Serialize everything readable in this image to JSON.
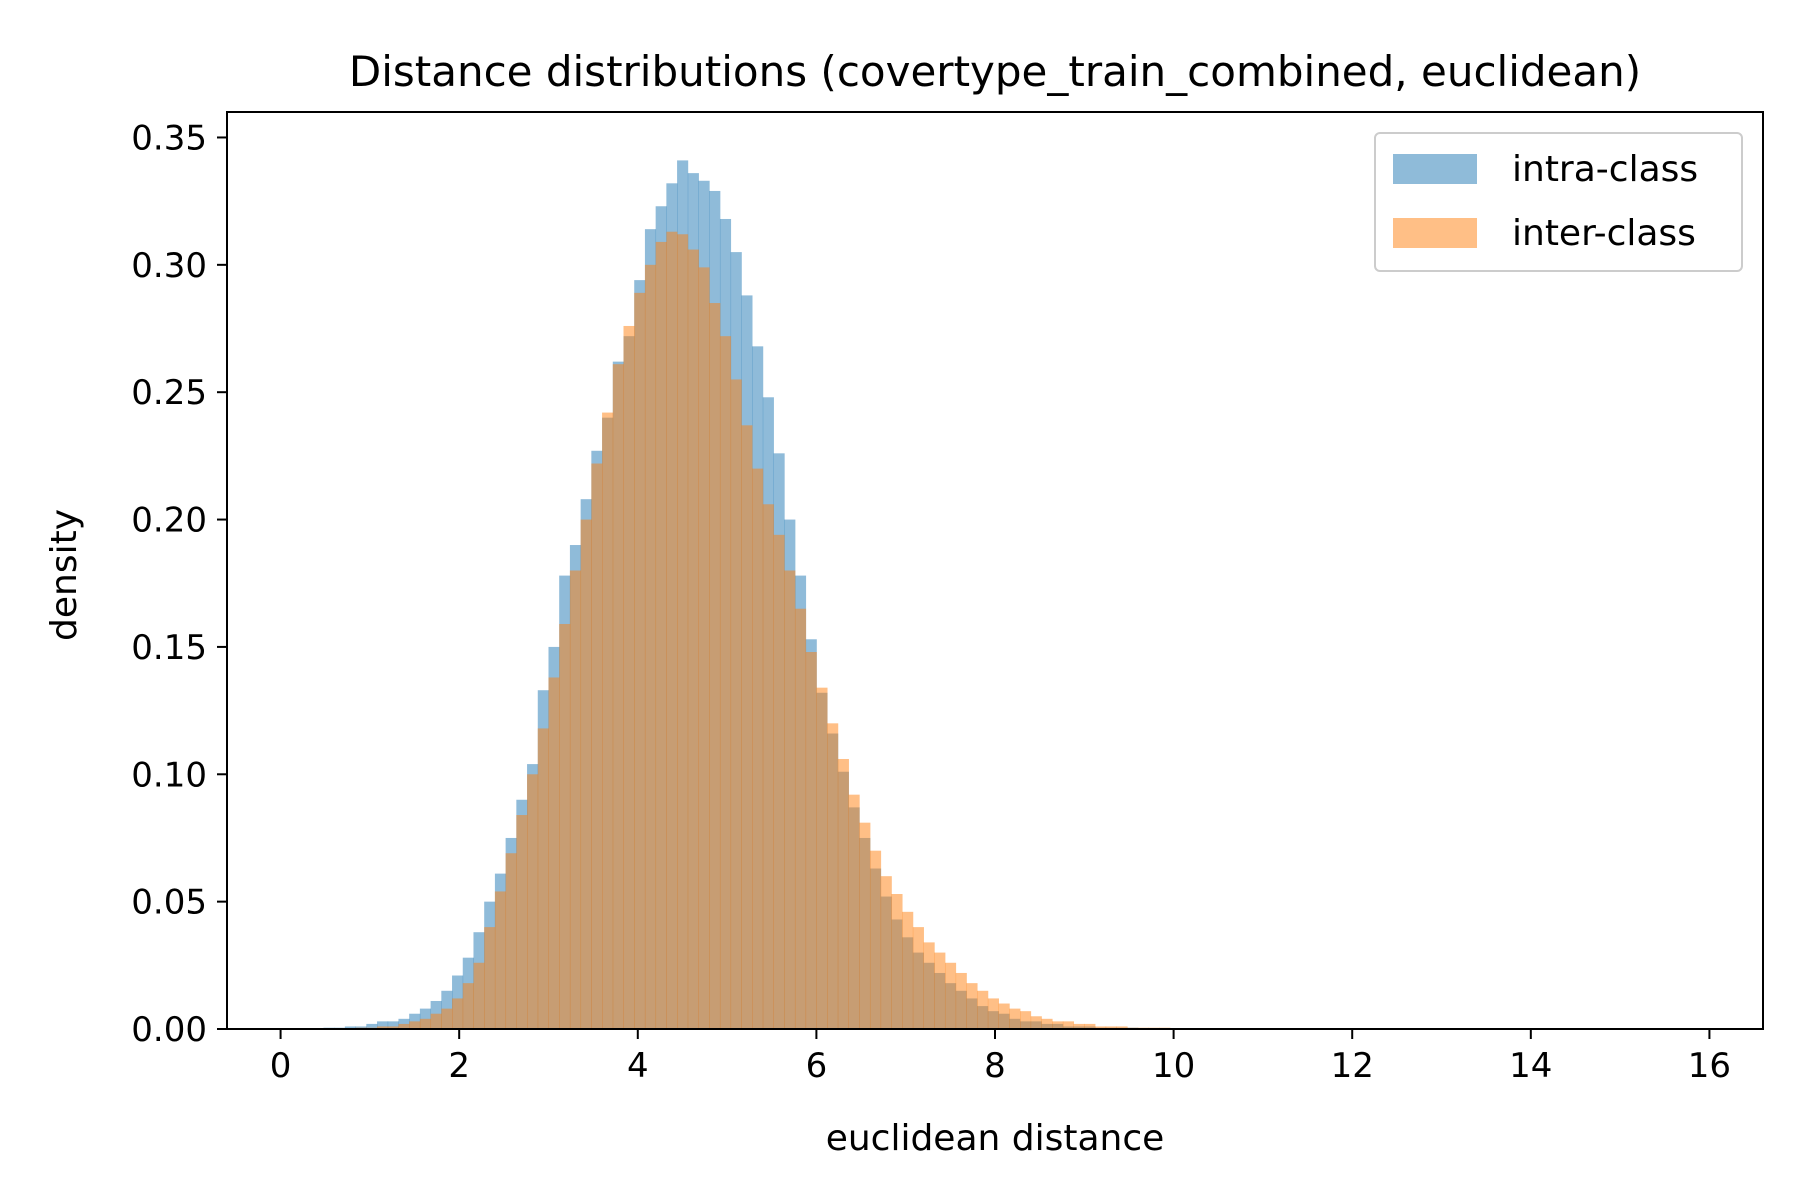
{
  "chart_data": {
    "type": "histogram",
    "title": "Distance distributions (covertype_train_combined, euclidean)",
    "xlabel": "euclidean distance",
    "ylabel": "density",
    "xlim": [
      -0.6,
      16.6
    ],
    "ylim": [
      0,
      0.36
    ],
    "xticks": [
      0,
      2,
      4,
      6,
      8,
      10,
      12,
      14,
      16
    ],
    "xtick_labels": [
      "0",
      "2",
      "4",
      "6",
      "8",
      "10",
      "12",
      "14",
      "16"
    ],
    "yticks": [
      0,
      0.05,
      0.1,
      0.15,
      0.2,
      0.25,
      0.3,
      0.35
    ],
    "ytick_labels": [
      "0.00",
      "0.05",
      "0.10",
      "0.15",
      "0.20",
      "0.25",
      "0.30",
      "0.35"
    ],
    "bin_start": 0,
    "bin_width": 0.12,
    "grid": false,
    "legend_position": "top-right",
    "series": [
      {
        "name": "intra-class",
        "color": "#1f77b4",
        "alpha": 0.5,
        "values": [
          0,
          0,
          0,
          0,
          0.0005,
          0.0005,
          0.001,
          0.001,
          0.002,
          0.003,
          0.003,
          0.004,
          0.006,
          0.008,
          0.011,
          0.015,
          0.021,
          0.028,
          0.038,
          0.05,
          0.061,
          0.075,
          0.09,
          0.104,
          0.133,
          0.15,
          0.178,
          0.19,
          0.208,
          0.227,
          0.24,
          0.262,
          0.272,
          0.294,
          0.314,
          0.323,
          0.332,
          0.341,
          0.336,
          0.333,
          0.329,
          0.318,
          0.305,
          0.288,
          0.268,
          0.248,
          0.226,
          0.2,
          0.178,
          0.153,
          0.132,
          0.116,
          0.101,
          0.087,
          0.075,
          0.063,
          0.052,
          0.043,
          0.036,
          0.03,
          0.026,
          0.022,
          0.018,
          0.015,
          0.012,
          0.009,
          0.007,
          0.006,
          0.004,
          0.003,
          0.003,
          0.002,
          0.002,
          0.001,
          0.001,
          0.001,
          0.0005,
          0.0005,
          0.0005,
          0.0005
        ]
      },
      {
        "name": "inter-class",
        "color": "#ff7f0e",
        "alpha": 0.5,
        "values": [
          0,
          0,
          0,
          0,
          0,
          0,
          0,
          0.0005,
          0.0005,
          0.001,
          0.001,
          0.002,
          0.003,
          0.004,
          0.006,
          0.008,
          0.012,
          0.018,
          0.026,
          0.04,
          0.054,
          0.069,
          0.084,
          0.1,
          0.118,
          0.138,
          0.159,
          0.18,
          0.2,
          0.222,
          0.242,
          0.261,
          0.276,
          0.289,
          0.3,
          0.309,
          0.313,
          0.312,
          0.306,
          0.299,
          0.285,
          0.272,
          0.255,
          0.237,
          0.22,
          0.206,
          0.194,
          0.18,
          0.165,
          0.148,
          0.134,
          0.12,
          0.106,
          0.092,
          0.081,
          0.07,
          0.06,
          0.053,
          0.046,
          0.04,
          0.034,
          0.03,
          0.026,
          0.022,
          0.018,
          0.015,
          0.012,
          0.01,
          0.008,
          0.007,
          0.005,
          0.004,
          0.003,
          0.003,
          0.002,
          0.002,
          0.001,
          0.001,
          0.001,
          0.0005,
          0.0005,
          0.0005,
          0.0005,
          0.0003,
          0.0003,
          0.0002,
          0.0002,
          0.0001,
          0.0001,
          0.0001,
          0.0001,
          0.0001,
          0.0001,
          0.0001,
          0.0001,
          0.0001,
          0.0001,
          0.0001,
          0.0001,
          0.0001
        ]
      }
    ]
  }
}
